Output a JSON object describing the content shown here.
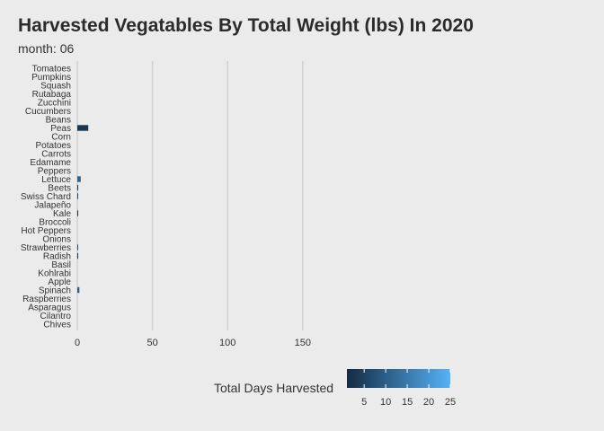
{
  "title": "Harvested Vegatables By Total Weight (lbs) In 2020",
  "subtitle": "month: 06",
  "chart_data": {
    "type": "bar",
    "orientation": "horizontal",
    "title": "Harvested Vegatables By Total Weight (lbs) In 2020",
    "subtitle": "month: 06",
    "xlabel": "",
    "ylabel": "",
    "xlim": [
      0,
      175
    ],
    "x_ticks": [
      0,
      50,
      100,
      150
    ],
    "grid": "vertical major gridlines",
    "categories": [
      "Tomatoes",
      "Pumpkins",
      "Squash",
      "Rutabaga",
      "Zucchini",
      "Cucumbers",
      "Beans",
      "Peas",
      "Corn",
      "Potatoes",
      "Carrots",
      "Edamame",
      "Peppers",
      "Lettuce",
      "Beets",
      "Swiss Chard",
      "Jalapeño",
      "Kale",
      "Broccoli",
      "Hot Peppers",
      "Onions",
      "Strawberries",
      "Radish",
      "Basil",
      "Kohlrabi",
      "Apple",
      "Spinach",
      "Raspberries",
      "Asparagus",
      "Cilantro",
      "Chives"
    ],
    "values": [
      0,
      0,
      0,
      0,
      0,
      0,
      0,
      7.3,
      0,
      0,
      0,
      0,
      0,
      2.3,
      0.2,
      0.4,
      0,
      0.3,
      0,
      0,
      0,
      0.3,
      0.5,
      0,
      0,
      0,
      1.4,
      0,
      0,
      0,
      0
    ],
    "total_days_harvested": [
      0,
      0,
      0,
      0,
      0,
      0,
      0,
      3,
      0,
      0,
      0,
      0,
      0,
      11,
      2,
      6,
      0,
      2,
      0,
      0,
      0,
      8,
      2,
      0,
      0,
      0,
      10,
      0,
      0,
      0,
      0
    ],
    "legend": {
      "title": "Total Days Harvested",
      "position": "bottom",
      "type": "colorbar",
      "ticks": [
        5,
        10,
        15,
        20,
        25
      ],
      "range": [
        1,
        25
      ],
      "color_low": "#132b43",
      "color_high": "#56b1f7"
    }
  }
}
